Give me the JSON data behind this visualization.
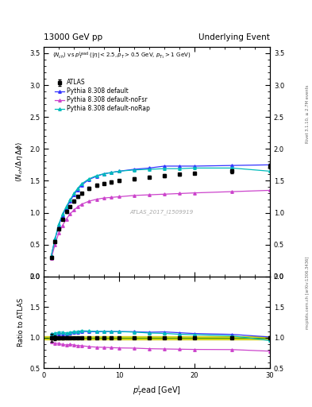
{
  "title_left": "13000 GeV pp",
  "title_right": "Underlying Event",
  "watermark": "ATLAS_2017_I1509919",
  "right_label_top": "Rivet 3.1.10, ≥ 2.7M events",
  "right_label_bot": "mcplots.cern.ch [arXiv:1306.3436]",
  "ylim_main": [
    0,
    3.6
  ],
  "ylim_ratio": [
    0.5,
    2.0
  ],
  "xlim": [
    0,
    30
  ],
  "atlas_x": [
    1.0,
    1.5,
    2.0,
    2.5,
    3.0,
    3.5,
    4.0,
    4.5,
    5.0,
    6.0,
    7.0,
    8.0,
    9.0,
    10.0,
    12.0,
    14.0,
    16.0,
    18.0,
    20.0,
    25.0,
    30.0
  ],
  "atlas_y": [
    0.3,
    0.55,
    0.75,
    0.9,
    1.02,
    1.1,
    1.18,
    1.25,
    1.3,
    1.38,
    1.43,
    1.46,
    1.48,
    1.5,
    1.53,
    1.56,
    1.58,
    1.6,
    1.62,
    1.65,
    1.73
  ],
  "atlas_yerr": [
    0.02,
    0.02,
    0.02,
    0.02,
    0.02,
    0.02,
    0.02,
    0.02,
    0.02,
    0.02,
    0.02,
    0.02,
    0.02,
    0.02,
    0.02,
    0.02,
    0.02,
    0.02,
    0.02,
    0.03,
    0.04
  ],
  "default_x": [
    1.0,
    1.5,
    2.0,
    2.5,
    3.0,
    3.5,
    4.0,
    4.5,
    5.0,
    6.0,
    7.0,
    8.0,
    9.0,
    10.0,
    12.0,
    14.0,
    16.0,
    18.0,
    20.0,
    25.0,
    30.0
  ],
  "default_y": [
    0.32,
    0.58,
    0.8,
    0.96,
    1.08,
    1.18,
    1.28,
    1.36,
    1.43,
    1.52,
    1.57,
    1.61,
    1.63,
    1.65,
    1.68,
    1.7,
    1.73,
    1.73,
    1.73,
    1.74,
    1.75
  ],
  "noFsr_x": [
    1.0,
    1.5,
    2.0,
    2.5,
    3.0,
    3.5,
    4.0,
    4.5,
    5.0,
    6.0,
    7.0,
    8.0,
    9.0,
    10.0,
    12.0,
    14.0,
    16.0,
    18.0,
    20.0,
    25.0,
    30.0
  ],
  "noFsr_y": [
    0.28,
    0.5,
    0.68,
    0.8,
    0.9,
    0.98,
    1.04,
    1.09,
    1.13,
    1.18,
    1.21,
    1.23,
    1.24,
    1.25,
    1.27,
    1.28,
    1.29,
    1.3,
    1.31,
    1.33,
    1.35
  ],
  "noRap_x": [
    1.0,
    1.5,
    2.0,
    2.5,
    3.0,
    3.5,
    4.0,
    4.5,
    5.0,
    6.0,
    7.0,
    8.0,
    9.0,
    10.0,
    12.0,
    14.0,
    16.0,
    18.0,
    20.0,
    25.0,
    30.0
  ],
  "noRap_y": [
    0.32,
    0.59,
    0.82,
    0.98,
    1.1,
    1.2,
    1.3,
    1.38,
    1.45,
    1.53,
    1.58,
    1.61,
    1.63,
    1.65,
    1.67,
    1.68,
    1.69,
    1.69,
    1.7,
    1.7,
    1.65
  ],
  "color_atlas": "#000000",
  "color_default": "#3333ff",
  "color_noFsr": "#cc44cc",
  "color_noRap": "#00bbbb",
  "color_band": "#cccc00",
  "legend_labels": [
    "ATLAS",
    "Pythia 8.308 default",
    "Pythia 8.308 default-noFsr",
    "Pythia 8.308 default-noRap"
  ]
}
